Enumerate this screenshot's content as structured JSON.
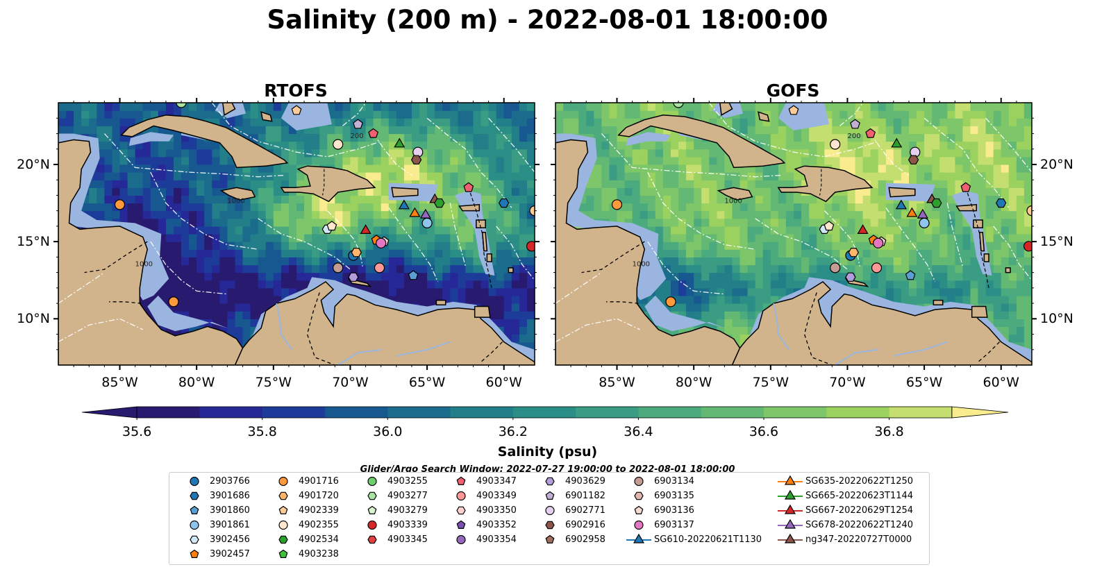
{
  "title": "Salinity (200 m) - 2022-08-01 18:00:00",
  "colors": {
    "land": "#d2b48c",
    "shelf": "#9ab6e0",
    "ramp": [
      "#281a6e",
      "#252896",
      "#1d3c9a",
      "#175891",
      "#1b6c8c",
      "#227e88",
      "#2b8e86",
      "#3a9c83",
      "#4cab7e",
      "#63b974",
      "#7ec66a",
      "#9ad15f",
      "#c4de6f",
      "#f8ec8e"
    ]
  },
  "chart_data": [
    {
      "type": "heatmap",
      "title": "RTOFS",
      "xticks": [
        "85°W",
        "80°W",
        "75°W",
        "70°W",
        "65°W",
        "60°W"
      ],
      "yticks": [
        "20°N",
        "15°N",
        "10°N"
      ],
      "xlim": [
        -89,
        -58
      ],
      "ylim": [
        7,
        24
      ],
      "field": "salinity"
    },
    {
      "type": "heatmap",
      "title": "GOFS",
      "xticks": [
        "85°W",
        "80°W",
        "75°W",
        "70°W",
        "65°W",
        "60°W"
      ],
      "yticks": [
        "20°N",
        "15°N",
        "10°N"
      ],
      "xlim": [
        -89,
        -58
      ],
      "ylim": [
        7,
        24
      ],
      "field": "salinity"
    }
  ],
  "colorbar": {
    "label": "Salinity (psu)",
    "min": 35.55,
    "max": 36.95,
    "ticks": [
      "35.6",
      "35.8",
      "36.0",
      "36.2",
      "36.4",
      "36.6",
      "36.8"
    ],
    "tick_values": [
      35.6,
      35.8,
      36.0,
      36.2,
      36.4,
      36.6,
      36.8
    ],
    "extend": "both"
  },
  "search_window": "Glider/Argo Search Window: 2022-07-27 19:00:00 to 2022-08-01 18:00:00",
  "legend": {
    "columns": [
      [
        {
          "label": "2903766",
          "marker": "circle",
          "color": "#1f77b4"
        },
        {
          "label": "3901686",
          "marker": "hexagon",
          "color": "#1f77b4"
        },
        {
          "label": "3901860",
          "marker": "pentagon",
          "color": "#5a9fd4"
        },
        {
          "label": "3901861",
          "marker": "circle",
          "color": "#8fc4ec"
        },
        {
          "label": "3902456",
          "marker": "hexagon",
          "color": "#d0e7f8"
        },
        {
          "label": "3902457",
          "marker": "pentagon",
          "color": "#ff7f0e"
        }
      ],
      [
        {
          "label": "4901716",
          "marker": "circle",
          "color": "#ff9a3c"
        },
        {
          "label": "4901720",
          "marker": "hexagon",
          "color": "#ffb66b"
        },
        {
          "label": "4902339",
          "marker": "pentagon",
          "color": "#ffcc99"
        },
        {
          "label": "4902355",
          "marker": "circle",
          "color": "#ffe6cc"
        },
        {
          "label": "4902534",
          "marker": "hexagon",
          "color": "#2ca02c"
        },
        {
          "label": "4903238",
          "marker": "pentagon",
          "color": "#3cc23c"
        }
      ],
      [
        {
          "label": "4903255",
          "marker": "circle",
          "color": "#6fcf6f"
        },
        {
          "label": "4903277",
          "marker": "hexagon",
          "color": "#a8e4a0"
        },
        {
          "label": "4903279",
          "marker": "pentagon",
          "color": "#d8f5d0"
        },
        {
          "label": "4903339",
          "marker": "circle",
          "color": "#d62728"
        },
        {
          "label": "4903345",
          "marker": "hexagon",
          "color": "#e04040"
        }
      ],
      [
        {
          "label": "4903347",
          "marker": "pentagon",
          "color": "#f06070"
        },
        {
          "label": "4903349",
          "marker": "circle",
          "color": "#ff9896"
        },
        {
          "label": "4903350",
          "marker": "hexagon",
          "color": "#ffd0d0"
        },
        {
          "label": "4903352",
          "marker": "pentagon",
          "color": "#7b4fb0"
        },
        {
          "label": "4903354",
          "marker": "circle",
          "color": "#9467bd"
        }
      ],
      [
        {
          "label": "4903629",
          "marker": "hexagon",
          "color": "#b39ddb"
        },
        {
          "label": "6901182",
          "marker": "pentagon",
          "color": "#c5b0d5"
        },
        {
          "label": "6902771",
          "marker": "circle",
          "color": "#e6d0f0"
        },
        {
          "label": "6902916",
          "marker": "hexagon",
          "color": "#8c564b"
        },
        {
          "label": "6902958",
          "marker": "pentagon",
          "color": "#a0705f"
        }
      ],
      [
        {
          "label": "6903134",
          "marker": "circle",
          "color": "#c49c94"
        },
        {
          "label": "6903135",
          "marker": "hexagon",
          "color": "#e0b8b0"
        },
        {
          "label": "6903136",
          "marker": "pentagon",
          "color": "#f5dcd5"
        },
        {
          "label": "6903137",
          "marker": "circle",
          "color": "#e377c2"
        },
        {
          "label": "SG610-20220621T1130",
          "marker": "triangle-line",
          "color": "#1f77b4"
        }
      ],
      [
        {
          "label": "SG635-20220622T1250",
          "marker": "triangle-line",
          "color": "#ff7f0e"
        },
        {
          "label": "SG665-20220623T1144",
          "marker": "triangle-line",
          "color": "#2ca02c"
        },
        {
          "label": "SG667-20220629T1254",
          "marker": "triangle-line",
          "color": "#d62728"
        },
        {
          "label": "SG678-20220622T1240",
          "marker": "triangle-line",
          "color": "#9467bd"
        },
        {
          "label": "ng347-20220727T0000",
          "marker": "triangle-line",
          "color": "#8c564b"
        }
      ]
    ]
  }
}
